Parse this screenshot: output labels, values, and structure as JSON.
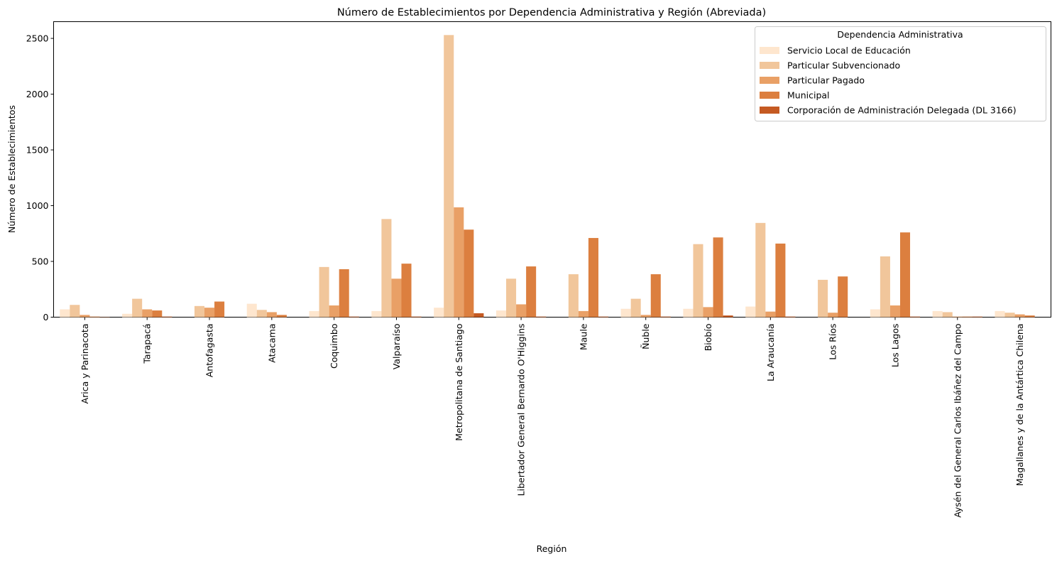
{
  "chart_data": {
    "type": "bar",
    "title": "Número de Establecimientos por Dependencia Administrativa y Región (Abreviada)",
    "xlabel": "Región",
    "ylabel": "Número de Establecimientos",
    "ylim": [
      0,
      2650
    ],
    "yticks": [
      0,
      500,
      1000,
      1500,
      2000,
      2500
    ],
    "grid": false,
    "legend": {
      "title": "Dependencia Administrativa",
      "placement": "top-right"
    },
    "categories": [
      "Arica y Parinacota",
      "Tarapacá",
      "Antofagasta",
      "Atacama",
      "Coquimbo",
      "Valparaíso",
      "Metropolitana de Santiago",
      "Libertador General Bernardo O'Higgins",
      "Maule",
      "Ñuble",
      "Biobío",
      "La Araucanía",
      "Los Ríos",
      "Los Lagos",
      "Aysén del General Carlos Ibáñez del Campo",
      "Magallanes y de la Antártica Chilena"
    ],
    "series": [
      {
        "name": "Servicio Local de Educación",
        "color": "#fee6ce",
        "values": [
          70,
          30,
          0,
          120,
          55,
          55,
          85,
          60,
          0,
          75,
          75,
          95,
          0,
          70,
          55,
          55
        ]
      },
      {
        "name": "Particular Subvencionado",
        "color": "#f1c69b",
        "values": [
          110,
          165,
          100,
          65,
          450,
          880,
          2530,
          345,
          385,
          165,
          655,
          845,
          335,
          545,
          45,
          40
        ]
      },
      {
        "name": "Particular Pagado",
        "color": "#e9a066",
        "values": [
          20,
          70,
          85,
          45,
          105,
          345,
          985,
          115,
          55,
          20,
          90,
          50,
          40,
          105,
          5,
          25
        ]
      },
      {
        "name": "Municipal",
        "color": "#dc7f3f",
        "values": [
          5,
          60,
          140,
          20,
          430,
          480,
          785,
          455,
          710,
          385,
          715,
          660,
          365,
          760,
          5,
          15
        ]
      },
      {
        "name": "Corporación de Administración Delegada (DL 3166)",
        "color": "#c55a22",
        "values": [
          2,
          5,
          0,
          0,
          5,
          5,
          35,
          5,
          5,
          5,
          15,
          5,
          0,
          5,
          5,
          0
        ]
      }
    ]
  }
}
